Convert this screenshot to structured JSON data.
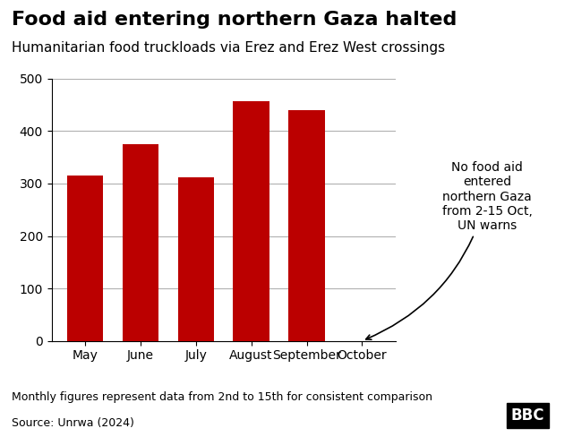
{
  "chart_data": {
    "type": "bar",
    "title": "Food aid entering northern Gaza halted",
    "subtitle": "Humanitarian food truckloads via Erez and Erez West crossings",
    "categories": [
      "May",
      "June",
      "July",
      "August",
      "September",
      "October"
    ],
    "values": [
      315,
      375,
      312,
      457,
      440,
      0
    ],
    "color": "#bb0000",
    "ylim": [
      0,
      500
    ],
    "yticks": [
      0,
      100,
      200,
      300,
      400,
      500
    ],
    "grid": true,
    "annotation": "No food aid\nentered\nnorthern Gaza\nfrom 2-15 Oct,\nUN warns",
    "footnote": "Monthly figures represent data from 2nd to 15th for consistent comparison",
    "source": "Source: Unrwa (2024)",
    "logo": "BBC"
  }
}
